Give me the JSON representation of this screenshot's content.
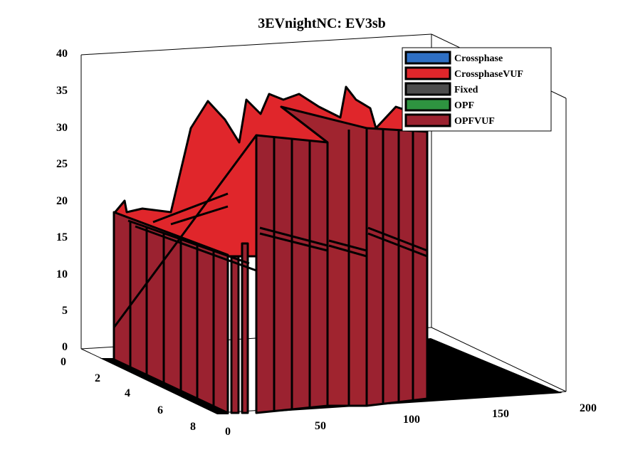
{
  "chart_data": {
    "type": "3d-waterfall",
    "title": "3EVnightNC: EV3sb",
    "xlabel": "",
    "ylabel": "",
    "zlabel": "",
    "xlim": [
      0,
      200
    ],
    "ylim": [
      0,
      8
    ],
    "zlim": [
      0,
      40
    ],
    "x_ticks": [
      "0",
      "50",
      "100",
      "150",
      "200"
    ],
    "y_ticks": [
      "0",
      "2",
      "4",
      "6",
      "8"
    ],
    "z_ticks": [
      "0",
      "5",
      "10",
      "15",
      "20",
      "25",
      "30",
      "35",
      "40"
    ],
    "legend": [
      {
        "label": "Crossphase",
        "color": "#2e6fc4"
      },
      {
        "label": "CrossphaseVUF",
        "color": "#e0262b"
      },
      {
        "label": "Fixed",
        "color": "#4d4d4d"
      },
      {
        "label": "OPF",
        "color": "#2e9440"
      },
      {
        "label": "OPFVUF",
        "color": "#9b2230"
      }
    ],
    "series": [
      {
        "name": "OPFVUF",
        "x": [
          0,
          1,
          2,
          3,
          4,
          5,
          6,
          7,
          8
        ],
        "values": [
          18.5,
          18.2,
          18.0,
          17.8,
          17.6,
          17.4,
          17.2,
          17.0,
          16.8
        ]
      },
      {
        "name": "CrossphaseVUF",
        "x": [
          0,
          20,
          28,
          40,
          48,
          56,
          60
        ],
        "values": [
          18.5,
          20,
          30,
          35,
          30,
          25,
          20
        ]
      },
      {
        "name": "OPFVUF",
        "x": [
          58,
          60,
          62,
          66,
          70,
          76
        ],
        "values": [
          32,
          35,
          33,
          35,
          36,
          33
        ]
      },
      {
        "name": "OPFVUF",
        "x": [
          112,
          114,
          118,
          122,
          126
        ],
        "values": [
          33,
          35,
          33,
          34,
          33
        ]
      }
    ]
  }
}
